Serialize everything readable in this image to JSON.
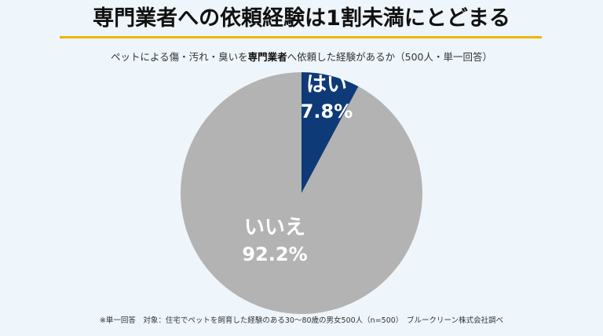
{
  "title": "専門業者への依頼経験は1割未満にとどまる",
  "subtitle": {
    "before": "ペットによる傷・汚れ・臭いを",
    "emphasis": "専門業者",
    "after": "へ依頼した経験があるか（500人・単一回答）"
  },
  "footnote": "※単一回答　対象：住宅でペットを飼育した経験のある30〜80歳の男女500人（n=500）　ブルークリーン株式会社調べ",
  "chart_data": {
    "type": "pie",
    "title": "専門業者への依頼経験は1割未満にとどまる",
    "slices": [
      {
        "label": "はい",
        "value": 7.8,
        "value_label": "7.8%",
        "color": "#0e3a78"
      },
      {
        "label": "いいえ",
        "value": 92.2,
        "value_label": "92.2%",
        "color": "#b3b3b3"
      }
    ],
    "start_angle": "12 o'clock",
    "direction": "clockwise",
    "legend": "none"
  }
}
